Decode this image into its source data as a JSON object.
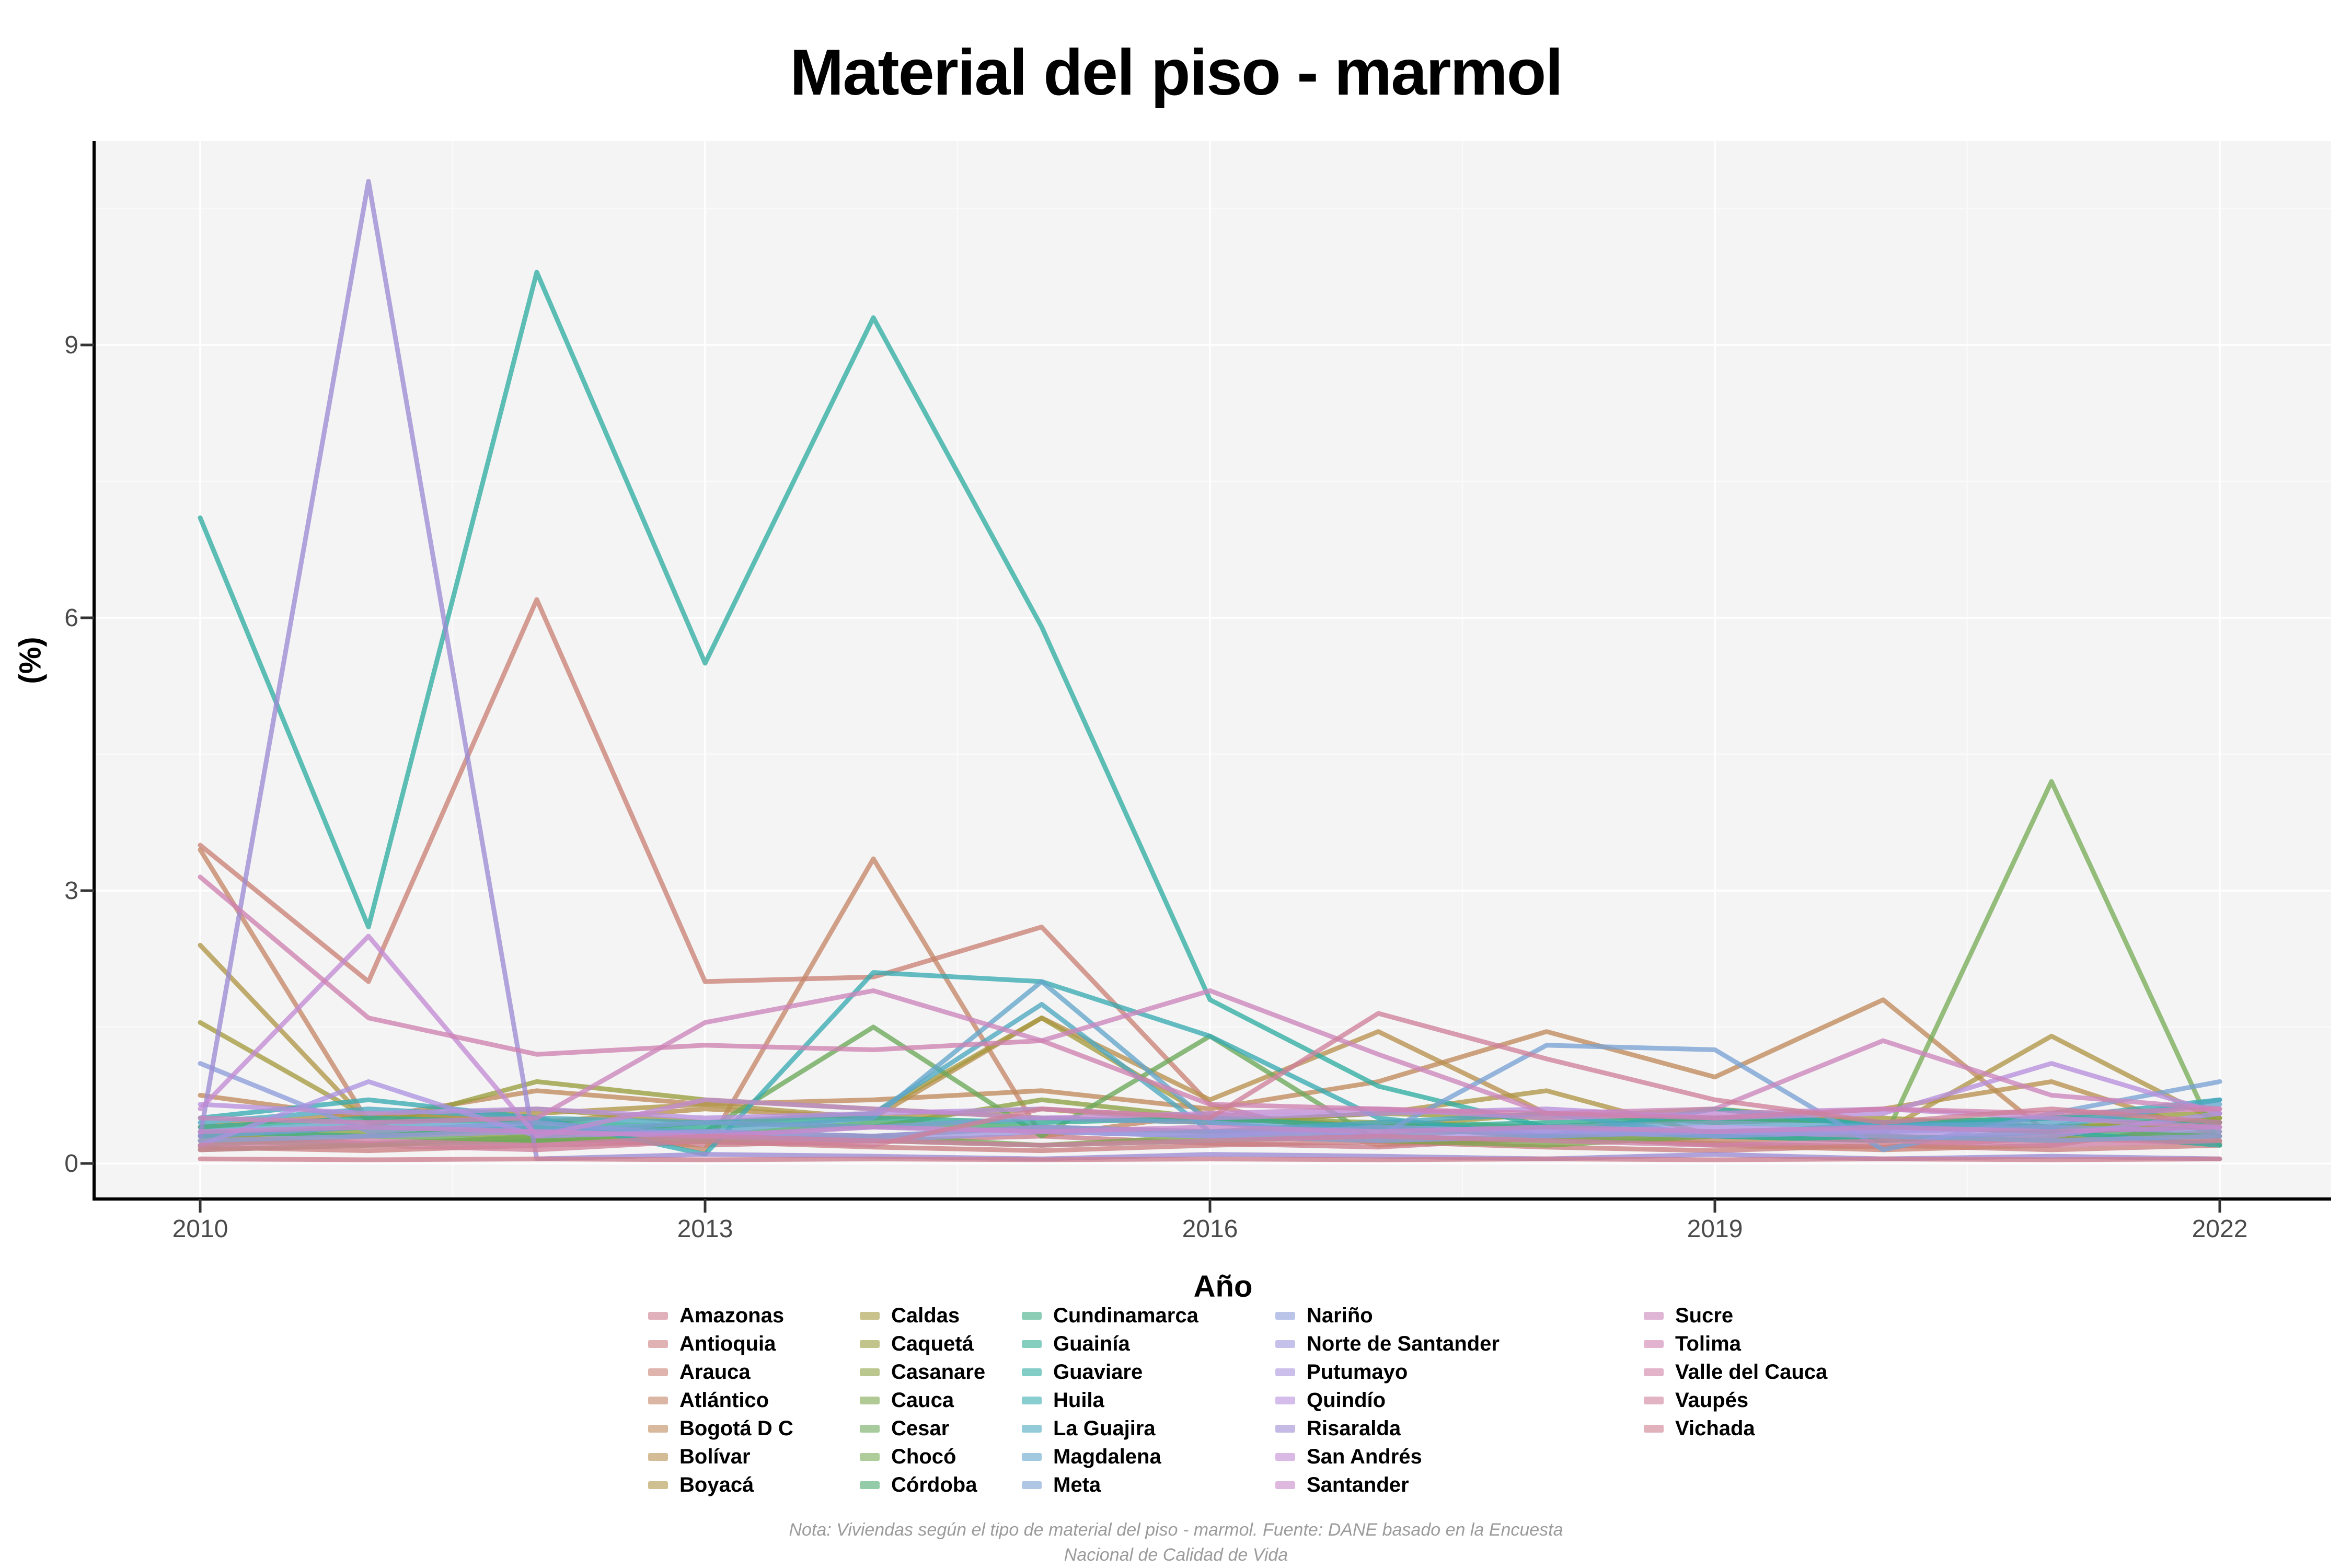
{
  "title": "Material del piso - marmol",
  "axes": {
    "x_label": "Año",
    "y_label": "(%)",
    "x_ticks": [
      2010,
      2013,
      2016,
      2019,
      2022
    ],
    "y_ticks": [
      0,
      3,
      6,
      9
    ]
  },
  "note": {
    "line1": "Nota: Viviendas según el tipo de material del piso - marmol. Fuente: DANE basado en la Encuesta",
    "line2": "Nacional de Calidad de Vida"
  },
  "colors": {
    "panel_bg": "#f4f4f4",
    "grid_major": "#ffffff",
    "grid_minor": "#fafafa",
    "axis_line": "#000000",
    "tick_mark": "#333333",
    "tick_text": "#4a4a4a",
    "note_text": "#9b9b9b",
    "line_opacity": 0.78
  },
  "legend": {
    "columns": [
      7,
      7,
      7,
      7,
      5
    ],
    "column_lefts": [
      1240,
      1645,
      1955,
      2440,
      3145
    ]
  },
  "chart_data": {
    "type": "line",
    "title": "Material del piso - marmol",
    "xlabel": "Año",
    "ylabel": "(%)",
    "x": [
      2010,
      2011,
      2012,
      2013,
      2014,
      2015,
      2016,
      2017,
      2018,
      2019,
      2020,
      2021,
      2022
    ],
    "xlim": [
      2009.4,
      2022.7
    ],
    "ylim": [
      0,
      11.3
    ],
    "grid": true,
    "legend_position": "bottom",
    "series": [
      {
        "name": "Amazonas",
        "color": "#cb7d8e",
        "values": [
          0.3,
          0.22,
          0.28,
          0.2,
          0.25,
          0.3,
          0.22,
          0.18,
          0.28,
          0.22,
          0.18,
          0.28,
          0.22
        ]
      },
      {
        "name": "Antioquia",
        "color": "#cb7f82",
        "values": [
          0.18,
          0.14,
          0.2,
          0.24,
          0.18,
          0.14,
          0.2,
          0.24,
          0.18,
          0.14,
          0.2,
          0.15,
          0.2
        ]
      },
      {
        "name": "Arauca",
        "color": "#c98275",
        "values": [
          3.5,
          2.0,
          6.2,
          2.0,
          2.05,
          2.6,
          0.65,
          0.2,
          0.3,
          0.2,
          0.15,
          0.2,
          0.45
        ]
      },
      {
        "name": "Atlántico",
        "color": "#c58669",
        "values": [
          3.45,
          0.45,
          0.5,
          0.15,
          3.35,
          0.3,
          0.55,
          0.4,
          0.3,
          0.25,
          0.3,
          0.25,
          0.35
        ]
      },
      {
        "name": "Bogotá D C",
        "color": "#c08b5c",
        "values": [
          0.75,
          0.5,
          0.8,
          0.65,
          0.7,
          0.8,
          0.6,
          0.9,
          1.45,
          0.95,
          1.8,
          0.3,
          0.5
        ]
      },
      {
        "name": "Bolívar",
        "color": "#b89150",
        "values": [
          0.4,
          0.55,
          0.45,
          0.6,
          0.5,
          1.6,
          0.7,
          1.45,
          0.55,
          0.5,
          0.6,
          0.9,
          0.3
        ]
      },
      {
        "name": "Boyacá",
        "color": "#af9647",
        "values": [
          2.4,
          0.45,
          0.55,
          0.65,
          0.5,
          0.6,
          0.45,
          0.55,
          0.8,
          0.3,
          0.35,
          1.4,
          0.45
        ]
      },
      {
        "name": "Caldas",
        "color": "#a59a40",
        "values": [
          1.55,
          0.5,
          0.6,
          0.45,
          0.55,
          1.6,
          0.5,
          0.4,
          0.55,
          0.45,
          0.5,
          0.4,
          0.45
        ]
      },
      {
        "name": "Caquetá",
        "color": "#999e3e",
        "values": [
          0.3,
          0.4,
          0.9,
          0.7,
          0.6,
          0.5,
          0.45,
          0.55,
          0.5,
          0.6,
          0.45,
          0.5,
          0.55
        ]
      },
      {
        "name": "Casanare",
        "color": "#8ca242",
        "values": [
          0.25,
          0.35,
          0.3,
          0.45,
          0.4,
          0.7,
          0.5,
          0.45,
          0.4,
          0.5,
          0.45,
          0.4,
          0.5
        ]
      },
      {
        "name": "Cauca",
        "color": "#7da54c",
        "values": [
          0.15,
          0.2,
          0.25,
          0.3,
          0.25,
          0.2,
          0.3,
          0.25,
          0.2,
          0.3,
          0.25,
          0.3,
          0.25
        ]
      },
      {
        "name": "Cesar",
        "color": "#6ca85a",
        "values": [
          0.2,
          0.3,
          0.25,
          0.35,
          1.5,
          0.3,
          1.4,
          0.25,
          0.3,
          0.35,
          0.3,
          0.25,
          0.3
        ]
      },
      {
        "name": "Chocó",
        "color": "#79ac58",
        "values": [
          0.25,
          0.2,
          0.3,
          0.25,
          0.3,
          0.2,
          0.25,
          0.3,
          0.25,
          0.3,
          0.25,
          4.2,
          0.2
        ]
      },
      {
        "name": "Córdoba",
        "color": "#4daa70",
        "values": [
          0.3,
          0.4,
          0.35,
          0.3,
          0.45,
          0.4,
          0.35,
          0.3,
          0.4,
          0.35,
          0.4,
          0.35,
          0.3
        ]
      },
      {
        "name": "Cundinamarca",
        "color": "#3dac83",
        "values": [
          0.35,
          0.3,
          0.4,
          0.35,
          0.3,
          0.4,
          0.35,
          0.4,
          0.3,
          0.35,
          0.4,
          0.35,
          0.4
        ]
      },
      {
        "name": "Guainía",
        "color": "#32ad95",
        "values": [
          0.4,
          0.5,
          0.45,
          0.4,
          0.5,
          0.45,
          0.5,
          0.4,
          0.45,
          0.5,
          0.45,
          0.5,
          0.45
        ]
      },
      {
        "name": "Guaviare",
        "color": "#2fada2",
        "values": [
          7.1,
          2.6,
          9.8,
          5.5,
          9.3,
          5.9,
          1.8,
          0.85,
          0.4,
          0.3,
          0.25,
          0.35,
          0.2
        ]
      },
      {
        "name": "Huila",
        "color": "#39abb1",
        "values": [
          0.5,
          0.7,
          0.5,
          0.1,
          2.1,
          2.0,
          1.4,
          0.5,
          0.3,
          0.6,
          0.4,
          0.5,
          0.7
        ]
      },
      {
        "name": "La Guajira",
        "color": "#4da8c0",
        "values": [
          0.45,
          0.6,
          0.5,
          0.45,
          0.55,
          1.75,
          0.35,
          0.45,
          0.55,
          0.3,
          0.45,
          0.4,
          0.7
        ]
      },
      {
        "name": "Magdalena",
        "color": "#63a5cb",
        "values": [
          0.35,
          0.45,
          0.4,
          0.35,
          0.5,
          2.0,
          0.45,
          0.35,
          0.4,
          0.45,
          0.4,
          0.45,
          0.65
        ]
      },
      {
        "name": "Meta",
        "color": "#79a1d4",
        "values": [
          0.3,
          0.4,
          0.35,
          0.45,
          0.4,
          0.5,
          0.45,
          0.3,
          1.3,
          1.25,
          0.15,
          0.55,
          0.9
        ]
      },
      {
        "name": "Nariño",
        "color": "#8c9cda",
        "values": [
          1.1,
          0.35,
          0.45,
          0.3,
          0.4,
          0.35,
          0.3,
          0.4,
          0.35,
          0.3,
          0.35,
          0.4,
          0.35
        ]
      },
      {
        "name": "Norte de Santander",
        "color": "#9e98de",
        "values": [
          0.25,
          0.3,
          0.35,
          0.3,
          0.25,
          0.35,
          0.3,
          0.25,
          0.3,
          0.35,
          0.3,
          0.25,
          0.3
        ]
      },
      {
        "name": "Putumayo",
        "color": "#ac94e0",
        "values": [
          0.2,
          0.9,
          0.3,
          0.35,
          0.3,
          0.4,
          0.35,
          0.3,
          0.35,
          0.4,
          0.35,
          0.3,
          0.55
        ]
      },
      {
        "name": "Quindío",
        "color": "#b890dd",
        "values": [
          0.65,
          0.55,
          0.6,
          0.5,
          0.55,
          0.6,
          0.5,
          0.55,
          0.6,
          0.5,
          0.55,
          1.1,
          0.55
        ]
      },
      {
        "name": "Risaralda",
        "color": "#9c8cd4",
        "values": [
          0.3,
          10.8,
          0.05,
          0.1,
          0.08,
          0.05,
          0.1,
          0.08,
          0.05,
          0.1,
          0.05,
          0.08,
          0.05
        ]
      },
      {
        "name": "San Andrés",
        "color": "#c38bd3",
        "values": [
          0.6,
          2.5,
          0.3,
          0.7,
          0.6,
          0.5,
          0.55,
          0.6,
          0.5,
          0.55,
          0.6,
          0.5,
          0.4
        ]
      },
      {
        "name": "Santander",
        "color": "#c988c9",
        "values": [
          0.35,
          0.4,
          0.35,
          0.3,
          0.4,
          0.35,
          0.4,
          0.35,
          0.4,
          0.35,
          0.4,
          0.35,
          0.4
        ]
      },
      {
        "name": "Sucre",
        "color": "#cc85bd",
        "values": [
          0.5,
          0.45,
          0.5,
          1.55,
          1.9,
          1.35,
          1.9,
          1.2,
          0.55,
          0.6,
          1.35,
          0.75,
          0.6
        ]
      },
      {
        "name": "Tolima",
        "color": "#ce82b1",
        "values": [
          3.15,
          1.6,
          1.2,
          1.3,
          1.25,
          1.35,
          0.65,
          0.6,
          0.55,
          0.5,
          0.6,
          0.55,
          0.6
        ]
      },
      {
        "name": "Valle del Cauca",
        "color": "#ce81a5",
        "values": [
          0.2,
          0.25,
          0.2,
          0.3,
          0.25,
          0.2,
          0.25,
          0.3,
          0.25,
          0.2,
          0.25,
          0.2,
          0.25
        ]
      },
      {
        "name": "Vaupés",
        "color": "#ce809a",
        "values": [
          0.15,
          0.2,
          0.15,
          0.25,
          0.2,
          0.6,
          0.5,
          1.65,
          1.15,
          0.7,
          0.45,
          0.6,
          0.45
        ]
      },
      {
        "name": "Vichada",
        "color": "#cd7f90",
        "values": [
          0.05,
          0.04,
          0.05,
          0.04,
          0.05,
          0.04,
          0.05,
          0.04,
          0.05,
          0.04,
          0.05,
          0.04,
          0.05
        ]
      }
    ]
  }
}
